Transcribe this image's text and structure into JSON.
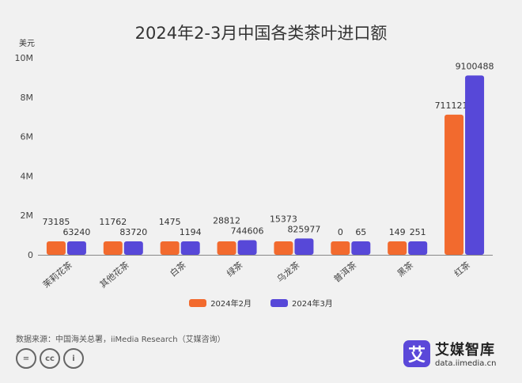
{
  "chart_data": {
    "type": "bar",
    "title": "2024年2-3月中国各类茶叶进口额",
    "ylabel": "美元",
    "ylim": [
      0,
      10000000
    ],
    "yticks": [
      "0",
      "2M",
      "4M",
      "6M",
      "8M",
      "10M"
    ],
    "categories": [
      "茉莉花茶",
      "其他花茶",
      "白茶",
      "绿茶",
      "乌龙茶",
      "普洱茶",
      "黑茶",
      "红茶"
    ],
    "series": [
      {
        "name": "2024年2月",
        "color": "#f26a2e",
        "values": [
          73185,
          11762,
          1475,
          28812,
          15373,
          0,
          149,
          7111210
        ]
      },
      {
        "name": "2024年3月",
        "color": "#5748d8",
        "values": [
          63240,
          83720,
          1194,
          744606,
          825977,
          65,
          251,
          9100488
        ]
      }
    ],
    "grid": false,
    "legend": "bottom"
  },
  "footer": {
    "source": "数据来源：中国海关总署，iiMedia Research（艾媒咨询）",
    "cc": [
      "=",
      "cc",
      "i"
    ],
    "logo_mark": "艾",
    "logo_name": "艾媒智库",
    "logo_url": "data.iimedia.cn"
  }
}
